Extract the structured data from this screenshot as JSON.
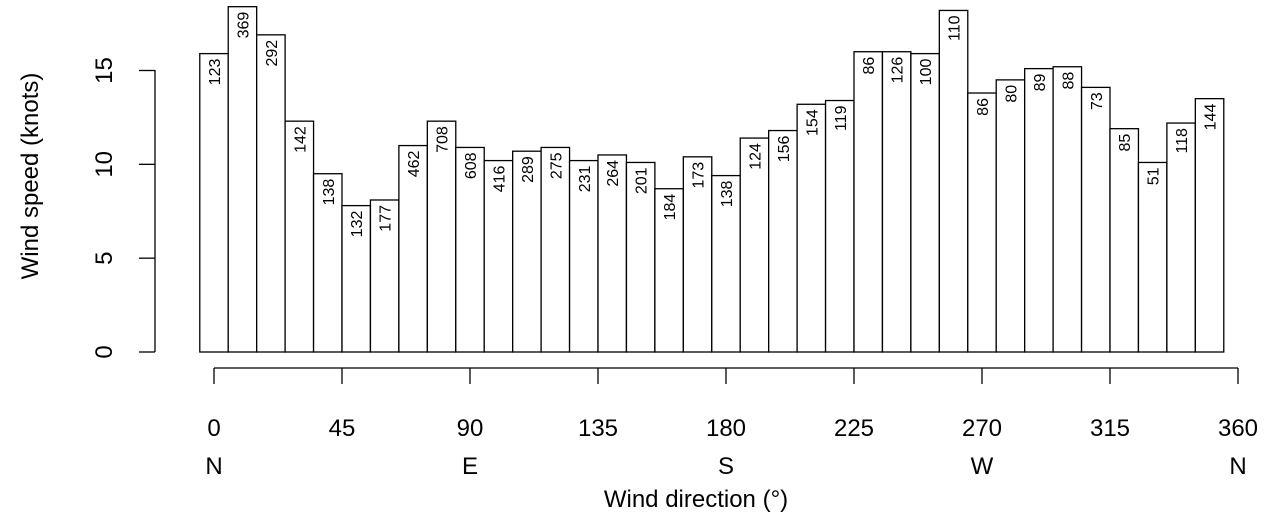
{
  "chart_data": {
    "type": "bar",
    "xlabel": "Wind direction (°)",
    "ylabel": "Wind speed (knots)",
    "xlim": [
      0,
      360
    ],
    "ylim": [
      0,
      18.5
    ],
    "x_ticks": [
      0,
      45,
      90,
      135,
      180,
      225,
      270,
      315,
      360
    ],
    "y_ticks": [
      0,
      5,
      10,
      15
    ],
    "compass": [
      {
        "x": 0,
        "label": "N"
      },
      {
        "x": 90,
        "label": "E"
      },
      {
        "x": 180,
        "label": "S"
      },
      {
        "x": 270,
        "label": "W"
      },
      {
        "x": 360,
        "label": "N"
      }
    ],
    "bin_width": 10,
    "bins": [
      -5,
      5,
      15,
      25,
      35,
      45,
      55,
      65,
      75,
      85,
      95,
      105,
      115,
      125,
      135,
      145,
      155,
      165,
      175,
      185,
      195,
      205,
      215,
      225,
      235,
      245,
      255,
      265,
      275,
      285,
      295,
      305,
      315,
      325,
      335,
      345
    ],
    "values": [
      15.9,
      18.4,
      16.9,
      12.3,
      9.5,
      7.8,
      8.1,
      11.0,
      12.3,
      10.9,
      10.2,
      10.7,
      10.9,
      10.2,
      10.5,
      10.1,
      8.7,
      10.4,
      9.4,
      11.4,
      11.8,
      13.2,
      13.4,
      16.0,
      16.0,
      15.9,
      18.2,
      13.8,
      14.5,
      15.1,
      15.2,
      14.1,
      11.9,
      10.1,
      12.2,
      13.5
    ],
    "counts": [
      "123",
      "369",
      "292",
      "142",
      "138",
      "132",
      "177",
      "462",
      "708",
      "608",
      "416",
      "289",
      "275",
      "231",
      "264",
      "201",
      "184",
      "173",
      "138",
      "124",
      "156",
      "154",
      "119",
      "86",
      "126",
      "100",
      "110",
      "86",
      "80",
      "89",
      "88",
      "73",
      "85",
      "51",
      "118",
      "144"
    ]
  }
}
